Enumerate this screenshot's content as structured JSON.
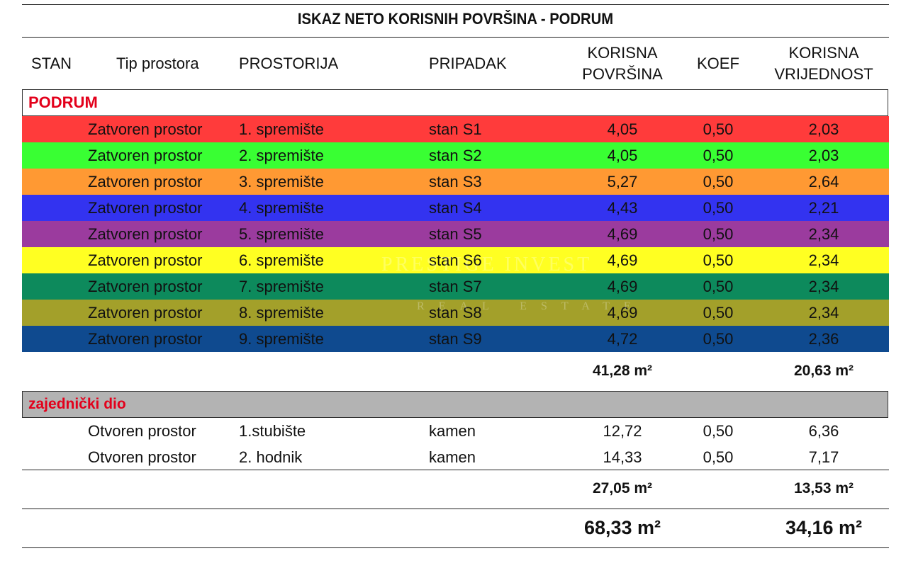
{
  "title": "ISKAZ NETO KORISNIH POVRŠINA - PODRUM",
  "headers": {
    "stan": "STAN",
    "tip": "Tip prostora",
    "prostorija": "PROSTORIJA",
    "pripadak": "PRIPADAK",
    "korisna1": "KORISNA",
    "korisna2": "POVRŠINA",
    "koef": "KOEF",
    "vrijednost1": "KORISNA",
    "vrijednost2": "VRIJEDNOST"
  },
  "podrum": {
    "label": "PODRUM",
    "rows": [
      {
        "color": "#ff3b3b",
        "tip": "Zatvoren prostor",
        "prostorija": "1. spremište",
        "pripadak": "stan S1",
        "povrsina": "4,05",
        "koef": "0,50",
        "vrijednost": "2,03"
      },
      {
        "color": "#39ff33",
        "tip": "Zatvoren prostor",
        "prostorija": "2. spremište",
        "pripadak": "stan S2",
        "povrsina": "4,05",
        "koef": "0,50",
        "vrijednost": "2,03"
      },
      {
        "color": "#ff9933",
        "tip": "Zatvoren prostor",
        "prostorija": "3. spremište",
        "pripadak": "stan S3",
        "povrsina": "5,27",
        "koef": "0,50",
        "vrijednost": "2,64"
      },
      {
        "color": "#3333f0",
        "tip": "Zatvoren prostor",
        "prostorija": "4. spremište",
        "pripadak": "stan S4",
        "povrsina": "4,43",
        "koef": "0,50",
        "vrijednost": "2,21"
      },
      {
        "color": "#9b3b9e",
        "tip": "Zatvoren prostor",
        "prostorija": "5. spremište",
        "pripadak": "stan S5",
        "povrsina": "4,69",
        "koef": "0,50",
        "vrijednost": "2,34"
      },
      {
        "color": "#ffff22",
        "tip": "Zatvoren prostor",
        "prostorija": "6. spremište",
        "pripadak": "stan S6",
        "povrsina": "4,69",
        "koef": "0,50",
        "vrijednost": "2,34"
      },
      {
        "color": "#0d8a5c",
        "tip": "Zatvoren prostor",
        "prostorija": "7. spremište",
        "pripadak": "stan S7",
        "povrsina": "4,69",
        "koef": "0,50",
        "vrijednost": "2,34"
      },
      {
        "color": "#a3a02a",
        "tip": "Zatvoren prostor",
        "prostorija": "8. spremište",
        "pripadak": "stan S8",
        "povrsina": "4,69",
        "koef": "0,50",
        "vrijednost": "2,34"
      },
      {
        "color": "#0f4a8f",
        "tip": "Zatvoren prostor",
        "prostorija": "9. spremište",
        "pripadak": "stan S9",
        "povrsina": "4,72",
        "koef": "0,50",
        "vrijednost": "2,36"
      }
    ],
    "total_povrsina": "41,28 m²",
    "total_vrijednost": "20,63 m²"
  },
  "zajednicki": {
    "label": "zajednički dio",
    "rows": [
      {
        "tip": "Otvoren prostor",
        "prostorija": "1.stubište",
        "pripadak": "kamen",
        "povrsina": "12,72",
        "koef": "0,50",
        "vrijednost": "6,36"
      },
      {
        "tip": "Otvoren prostor",
        "prostorija": "2. hodnik",
        "pripadak": "kamen",
        "povrsina": "14,33",
        "koef": "0,50",
        "vrijednost": "7,17"
      }
    ],
    "total_povrsina": "27,05 m²",
    "total_vrijednost": "13,53 m²"
  },
  "grand_total": {
    "povrsina": "68,33 m²",
    "vrijednost": "34,16 m²"
  },
  "watermark": {
    "line1": "PRESTIGE INVEST",
    "line2": "REAL ESTATE"
  },
  "colors": {
    "section_label": "#e3001b",
    "zajednicki_bg": "#b3b3b3"
  }
}
